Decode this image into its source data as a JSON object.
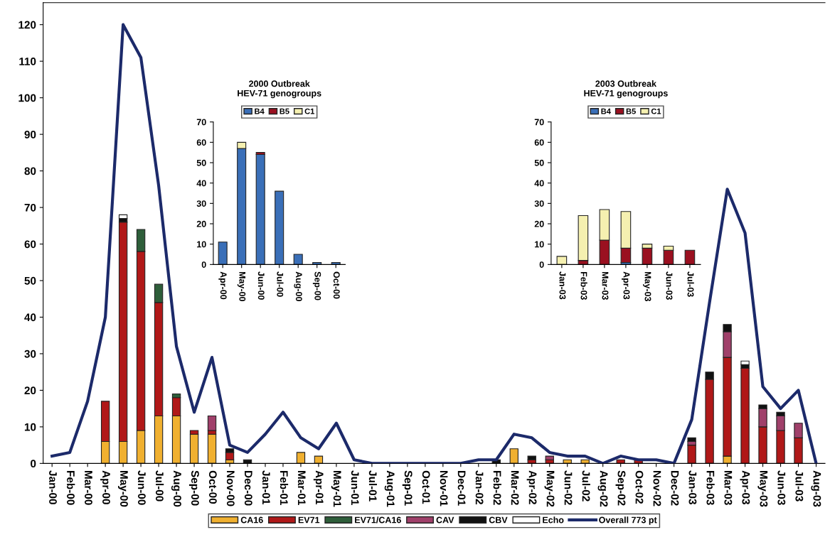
{
  "chart_data": [
    {
      "type": "bar",
      "stacked": true,
      "legend": "bottom",
      "grid": false,
      "categories": [
        "Jan-00",
        "Feb-00",
        "Mar-00",
        "Apr-00",
        "May-00",
        "Jun-00",
        "Jul-00",
        "Aug-00",
        "Sep-00",
        "Oct-00",
        "Nov-00",
        "Dec-00",
        "Jan-01",
        "Feb-01",
        "Mar-01",
        "Apr-01",
        "May-01",
        "Jun-01",
        "Jul-01",
        "Aug-01",
        "Sep-01",
        "Oct-01",
        "Nov-01",
        "Dec-01",
        "Jan-02",
        "Feb-02",
        "Mar-02",
        "Apr-02",
        "May-02",
        "Jun-02",
        "Jul-02",
        "Aug-02",
        "Sep-02",
        "Oct-02",
        "Nov-02",
        "Dec-02",
        "Jan-03",
        "Feb-03",
        "Mar-03",
        "Apr-03",
        "May-03",
        "Jun-03",
        "Jul-03",
        "Aug-03"
      ],
      "ylim": [
        0,
        126
      ],
      "yticks": [
        0,
        10,
        20,
        30,
        40,
        50,
        60,
        70,
        80,
        90,
        100,
        110,
        120
      ],
      "series": [
        {
          "name": "CA16",
          "color": "#f0b030",
          "values": [
            0,
            0,
            0,
            6,
            6,
            9,
            13,
            13,
            8,
            8,
            1,
            0,
            0,
            0,
            3,
            2,
            0,
            0,
            0,
            0,
            0,
            0,
            0,
            0,
            0,
            0,
            4,
            0,
            0,
            1,
            1,
            0,
            0,
            0,
            0,
            0,
            0,
            0,
            2,
            0,
            0,
            0,
            0,
            0
          ]
        },
        {
          "name": "EV71",
          "color": "#b01818",
          "values": [
            0,
            0,
            0,
            11,
            60,
            49,
            31,
            5,
            1,
            1,
            2,
            0,
            0,
            0,
            0,
            0,
            0,
            0,
            0,
            0,
            0,
            0,
            0,
            0,
            0,
            0,
            0,
            1,
            1,
            0,
            0,
            0,
            1,
            1,
            0,
            0,
            5,
            23,
            27,
            26,
            10,
            9,
            7,
            0
          ]
        },
        {
          "name": "EV71/CA16",
          "color": "#2e5e3a",
          "values": [
            0,
            0,
            0,
            0,
            0,
            6,
            5,
            1,
            0,
            0,
            0,
            0,
            0,
            0,
            0,
            0,
            0,
            0,
            0,
            0,
            0,
            0,
            0,
            0,
            0,
            0,
            0,
            0,
            0,
            0,
            0,
            0,
            0,
            0,
            0,
            0,
            0,
            0,
            0,
            0,
            0,
            0,
            0,
            0
          ]
        },
        {
          "name": "CAV",
          "color": "#a0406a",
          "values": [
            0,
            0,
            0,
            0,
            0,
            0,
            0,
            0,
            0,
            4,
            0,
            0,
            0,
            0,
            0,
            0,
            0,
            0,
            0,
            0,
            0,
            0,
            0,
            0,
            null,
            0,
            0,
            0,
            1,
            0,
            0,
            0,
            0,
            0,
            0,
            0,
            1,
            0,
            7,
            0,
            5,
            4,
            4,
            0
          ]
        },
        {
          "name": "CBV",
          "color": "#111111",
          "values": [
            0,
            0,
            0,
            0,
            1,
            0,
            0,
            0,
            0,
            0,
            1,
            1,
            0,
            0,
            0,
            0,
            0,
            0,
            0,
            0,
            0,
            0,
            0,
            0,
            0,
            1,
            0,
            1,
            0,
            0,
            0,
            0,
            0,
            0,
            0,
            0,
            1,
            2,
            2,
            1,
            1,
            1,
            0,
            0
          ]
        },
        {
          "name": "Echo",
          "color": "#ffffff",
          "values": [
            0,
            0,
            0,
            0,
            1,
            0,
            0,
            0,
            0,
            0,
            0,
            0,
            0,
            0,
            0,
            0,
            0,
            0,
            0,
            0,
            0,
            0,
            0,
            0,
            0,
            0,
            0,
            0,
            0,
            0,
            0,
            0,
            0,
            0,
            0,
            0,
            0,
            0,
            0,
            1,
            0,
            0,
            0,
            0
          ]
        },
        {
          "name": "Overall 773 pt",
          "type": "line",
          "color": "#1c2a6a",
          "values": [
            2,
            3,
            17,
            40,
            120,
            111,
            76,
            32,
            14,
            29,
            5,
            3,
            8,
            14,
            7,
            4,
            11,
            1,
            0,
            0,
            0,
            0,
            0,
            0,
            1,
            1,
            8,
            7,
            3,
            2,
            2,
            0,
            2,
            1,
            1,
            0,
            12,
            44,
            75,
            63,
            21,
            15,
            20,
            0
          ]
        }
      ]
    },
    {
      "type": "bar",
      "stacked": true,
      "legend": "top",
      "title": "2000 Outbreak\nHEV-71 genogroups",
      "categories": [
        "Apr-00",
        "May-00",
        "Jun-00",
        "Jul-00",
        "Aug-00",
        "Sep-00",
        "Oct-00"
      ],
      "ylim": [
        0,
        70
      ],
      "yticks": [
        0,
        10,
        20,
        30,
        40,
        50,
        60,
        70
      ],
      "series": [
        {
          "name": "B4",
          "color": "#3a6fb8",
          "values": [
            11,
            57,
            54,
            36,
            5,
            1,
            1
          ]
        },
        {
          "name": "B5",
          "color": "#9a1020",
          "values": [
            0,
            0,
            1,
            0,
            0,
            0,
            0
          ]
        },
        {
          "name": "C1",
          "color": "#f5f0b0",
          "values": [
            0,
            3,
            0,
            0,
            0,
            0,
            0
          ]
        }
      ]
    },
    {
      "type": "bar",
      "stacked": true,
      "legend": "top",
      "title": "2003 Outbreak\nHEV-71 genogroups",
      "categories": [
        "Jan-03",
        "Feb-03",
        "Mar-03",
        "Apr-03",
        "May-03",
        "Jun-03",
        "Jul-03"
      ],
      "ylim": [
        0,
        70
      ],
      "yticks": [
        0,
        10,
        20,
        30,
        40,
        50,
        60,
        70
      ],
      "series": [
        {
          "name": "B4",
          "color": "#3a6fb8",
          "values": [
            0,
            0,
            0,
            1,
            0,
            0,
            0
          ]
        },
        {
          "name": "B5",
          "color": "#9a1020",
          "values": [
            0,
            2,
            12,
            7,
            8,
            7,
            7
          ]
        },
        {
          "name": "C1",
          "color": "#f5f0b0",
          "values": [
            4,
            22,
            15,
            18,
            2,
            2,
            0
          ]
        }
      ]
    }
  ]
}
